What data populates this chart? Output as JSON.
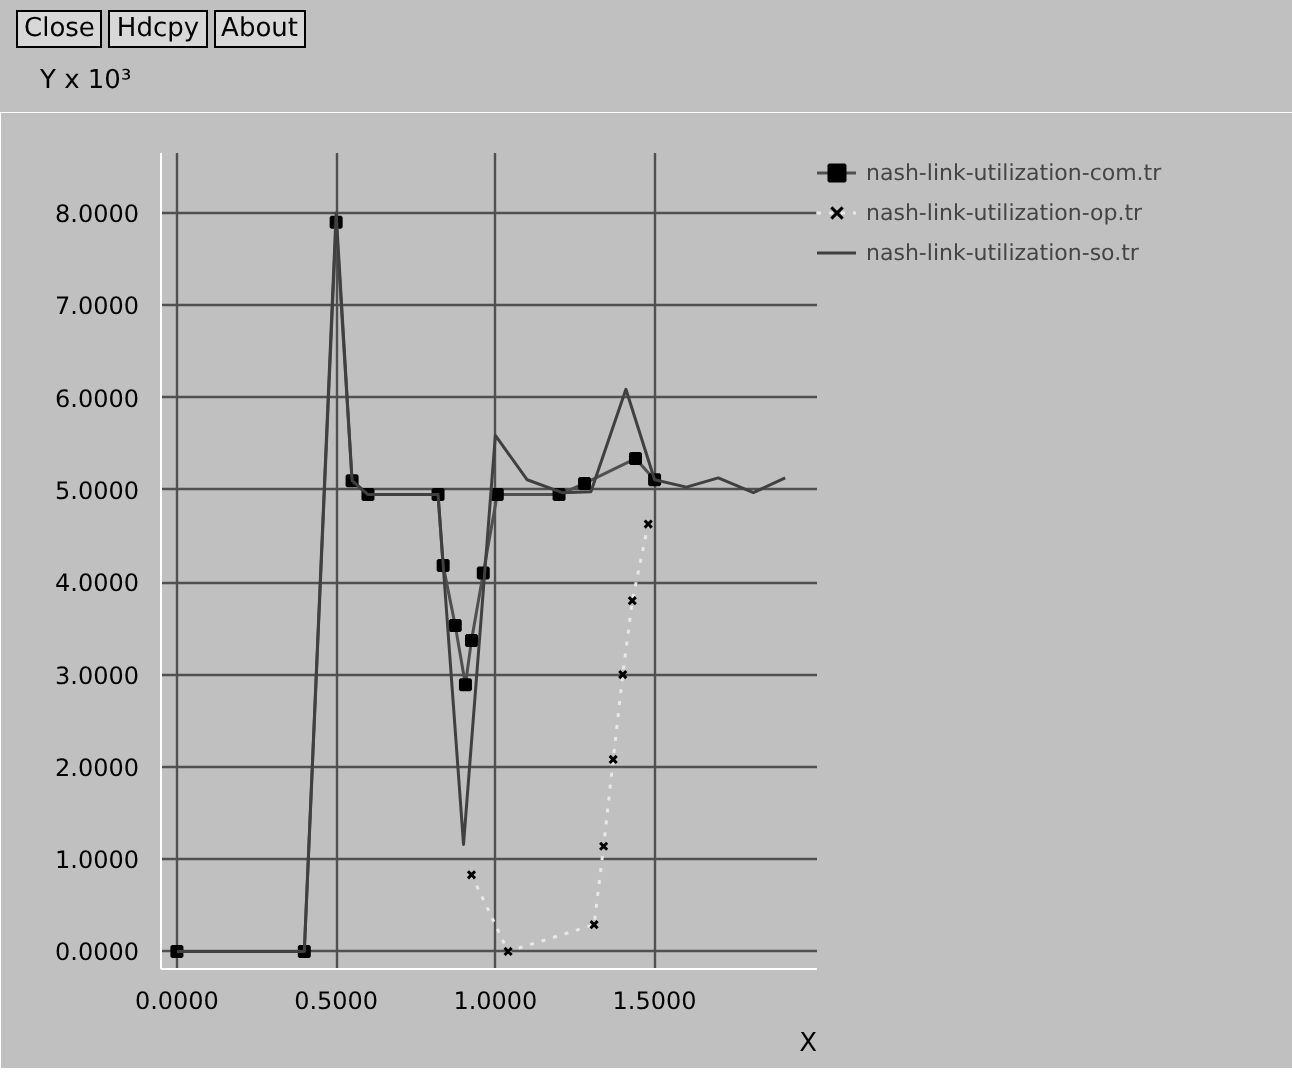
{
  "chart_data": {
    "type": "line",
    "ylabel": "Y x 10³",
    "xlabel": "X",
    "annotations": [
      "Close",
      "Hdcpy",
      "About"
    ],
    "xlim": [
      -0.05,
      2.01
    ],
    "ylim": [
      -0.19,
      8.65
    ],
    "xticks": [
      {
        "value": 0,
        "label": "0.0000"
      },
      {
        "value": 0.5,
        "label": "0.5000"
      },
      {
        "value": 1,
        "label": "1.0000"
      },
      {
        "value": 1.5,
        "label": "1.5000"
      }
    ],
    "yticks": [
      {
        "value": 0,
        "label": "0.0000"
      },
      {
        "value": 1,
        "label": "1.0000"
      },
      {
        "value": 2,
        "label": "2.0000"
      },
      {
        "value": 3,
        "label": "3.0000"
      },
      {
        "value": 4,
        "label": "4.0000"
      },
      {
        "value": 5,
        "label": "5.0000"
      },
      {
        "value": 6,
        "label": "6.0000"
      },
      {
        "value": 7,
        "label": "7.0000"
      },
      {
        "value": 8,
        "label": "8.0000"
      }
    ],
    "grid": true,
    "legend": "top right",
    "series": [
      {
        "name": "nash-link-utilization-com.tr",
        "color": "#505050",
        "marker": "square",
        "line_style": "solid",
        "x": [
          0,
          0.4,
          0.5,
          0.55,
          0.6,
          0.82,
          0.836,
          0.874,
          0.906,
          0.925,
          0.962,
          1.006,
          1.2,
          1.28,
          1.44,
          1.5
        ],
        "values": [
          0,
          0,
          7.9,
          5.1,
          4.95,
          4.95,
          4.18,
          3.53,
          2.89,
          3.37,
          4.1,
          4.95,
          4.95,
          5.07,
          5.34,
          5.11
        ]
      },
      {
        "name": "nash-link-utilization-op.tr",
        "color": "#e8e8e8",
        "marker": "cross",
        "line_style": "dotted",
        "x": [
          0.925,
          1.04,
          1.31,
          1.34,
          1.37,
          1.4,
          1.43,
          1.48
        ],
        "values": [
          0.83,
          0,
          0.29,
          1.14,
          2.08,
          3.0,
          3.8,
          4.63
        ]
      },
      {
        "name": "nash-link-utilization-so.tr",
        "color": "#404040",
        "marker": "none",
        "line_style": "solid",
        "x": [
          0,
          0.4,
          0.5,
          0.55,
          0.6,
          0.82,
          0.9,
          1.0,
          1.1,
          1.21,
          1.3,
          1.41,
          1.5,
          1.6,
          1.7,
          1.81,
          1.91
        ],
        "values": [
          0,
          0,
          8.0,
          5.1,
          4.95,
          4.95,
          1.16,
          5.59,
          5.11,
          4.97,
          4.98,
          6.09,
          5.11,
          5.03,
          5.13,
          4.97,
          5.13
        ]
      }
    ]
  }
}
